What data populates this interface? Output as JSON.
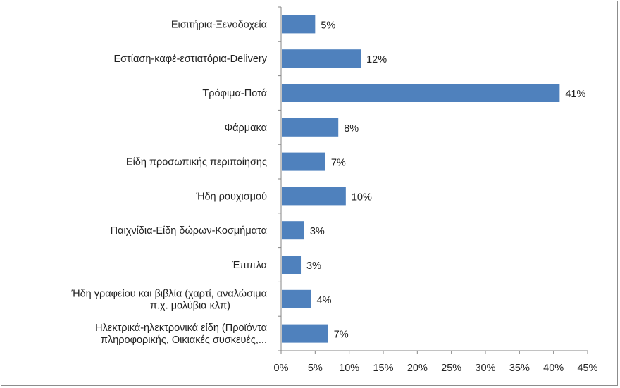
{
  "chart_data": {
    "type": "bar",
    "orientation": "horizontal",
    "title": "",
    "xlabel": "",
    "ylabel": "",
    "categories": [
      [
        "Εισιτήρια-Ξενοδοχεία"
      ],
      [
        "Εστίαση-καφέ-εστιατόρια-Delivery"
      ],
      [
        "Τρόφιμα-Ποτά"
      ],
      [
        "Φάρμακα"
      ],
      [
        "Είδη προσωπικής περιποίησης"
      ],
      [
        "Ήδη ρουχισμού"
      ],
      [
        "Παιχνίδια-Είδη  δώρων-Κοσμήματα"
      ],
      [
        "Έπιπλα"
      ],
      [
        "Ήδη γραφείου και βιβλία (χαρτί, αναλώσιμα",
        "π.χ. μολύβια κλπ)"
      ],
      [
        "Ηλεκτρικά-ηλεκτρονικά είδη (Προϊόντα",
        "πληροφορικής, Οικιακές συσκευές,..."
      ]
    ],
    "values": [
      5.0,
      11.7,
      40.9,
      8.4,
      6.5,
      9.5,
      3.4,
      2.9,
      4.4,
      6.9
    ],
    "data_labels": [
      "5%",
      "12%",
      "41%",
      "8%",
      "7%",
      "10%",
      "3%",
      "3%",
      "4%",
      "7%"
    ],
    "xlim": [
      0,
      45
    ],
    "x_ticks": [
      "0%",
      "5%",
      "10%",
      "15%",
      "20%",
      "25%",
      "30%",
      "35%",
      "40%",
      "45%"
    ],
    "grid": false,
    "legend": "none",
    "bar_color": "#4f81bd"
  }
}
